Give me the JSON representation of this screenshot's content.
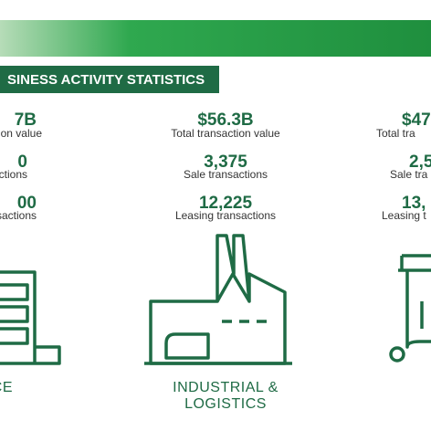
{
  "header": {
    "title": "SINESS ACTIVITY STATISTICS"
  },
  "columns": [
    {
      "stats": [
        {
          "value": "7B",
          "label": "on value"
        },
        {
          "value": "0",
          "label": "ctions"
        },
        {
          "value": "00",
          "label": "nsactions"
        }
      ],
      "sector": [
        "CE"
      ]
    },
    {
      "stats": [
        {
          "value": "$56.3B",
          "label": "Total transaction value"
        },
        {
          "value": "3,375",
          "label": "Sale transactions"
        },
        {
          "value": "12,225",
          "label": "Leasing transactions"
        }
      ],
      "sector": [
        "INDUSTRIAL &",
        "LOGISTICS"
      ]
    },
    {
      "stats": [
        {
          "value": "$47",
          "label": "Total tra"
        },
        {
          "value": "2,5",
          "label": "Sale tra"
        },
        {
          "value": "13,",
          "label": "Leasing t"
        }
      ],
      "sector": []
    }
  ]
}
